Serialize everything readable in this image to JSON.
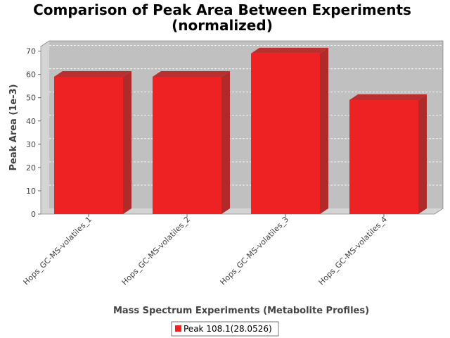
{
  "chart_data": {
    "type": "bar",
    "title": "Comparison of Peak Area Between Experiments",
    "subtitle": "(normalized)",
    "xlabel": "Mass Spectrum Experiments (Metabolite Profiles)",
    "ylabel": "Peak Area (1e-3)",
    "categories": [
      "Hops_GC-MS-volatiles_1",
      "Hops_GC-MS-volatiles_2",
      "Hops_GC-MS-volatiles_3",
      "Hops_GC-MS-volatiles_4"
    ],
    "series": [
      {
        "name": "Peak 108.1(28.0526)",
        "values": [
          59,
          59,
          69,
          49
        ],
        "color": "#ee2222"
      }
    ],
    "ylim": [
      0,
      72
    ],
    "yticks": [
      "0",
      "10",
      "20",
      "30",
      "40",
      "50",
      "60",
      "70"
    ],
    "grid": true,
    "legend_position": "bottom",
    "plot_background": "#c0c0c0"
  }
}
